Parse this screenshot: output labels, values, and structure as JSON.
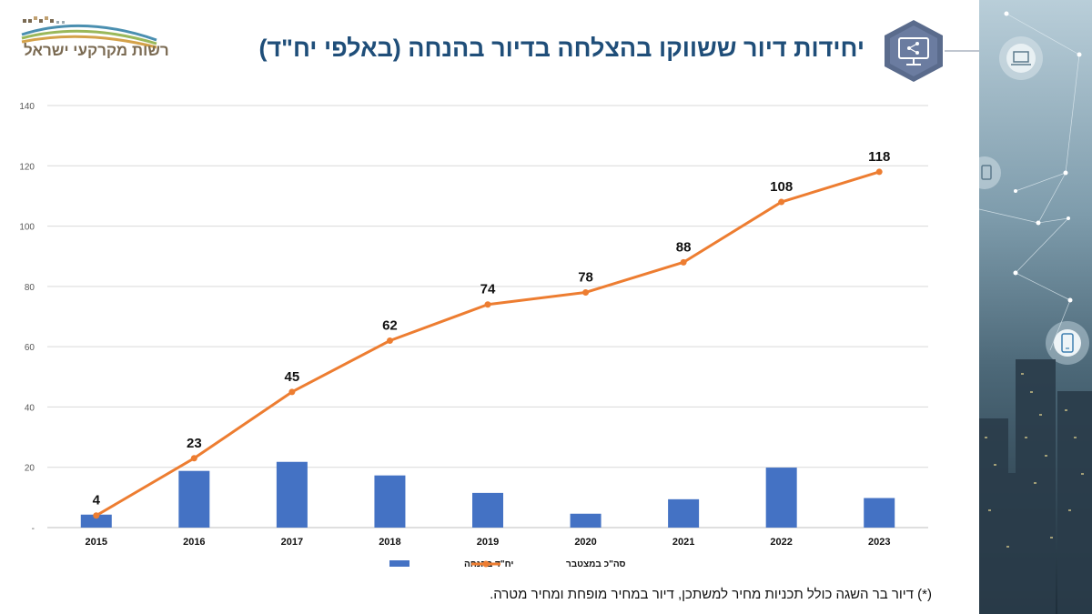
{
  "header": {
    "title": "יחידות דיור ששווקו בהצלחה בדיור בהנחה (באלפי יח\"ד)",
    "logo_text": "רשות מקרקעי ישראל"
  },
  "icons": {
    "title_icon": "share-monitor-icon",
    "side_icons": [
      "laptop-icon",
      "tablet-icon",
      "phone-icon"
    ]
  },
  "colors": {
    "bar": "#4472c4",
    "line": "#ed7d31",
    "title": "#1f4e79"
  },
  "footnote": "(*) דיור בר השגה כולל תכניות מחיר למשתכן, דיור במחיר מופחת ומחיר מטרה.",
  "chart_data": {
    "type": "bar+line",
    "categories": [
      "2015",
      "2016",
      "2017",
      "2018",
      "2019",
      "2020",
      "2021",
      "2022",
      "2023"
    ],
    "series": [
      {
        "name": "יח\"ד בהנחה",
        "type": "bar",
        "values": [
          4.3,
          18.8,
          21.8,
          17.3,
          11.5,
          4.6,
          9.4,
          19.9,
          9.8
        ]
      },
      {
        "name": "סה\"כ במצטבר",
        "type": "line",
        "values": [
          4,
          23,
          45,
          62,
          74,
          78,
          88,
          108,
          118
        ],
        "data_labels": [
          "4",
          "23",
          "45",
          "62",
          "74",
          "78",
          "88",
          "108",
          "118"
        ]
      }
    ],
    "yticks": [
      "-",
      "20",
      "40",
      "60",
      "80",
      "100",
      "120",
      "140"
    ],
    "ylim": [
      0,
      140
    ],
    "grid": true,
    "legend": "bottom"
  }
}
